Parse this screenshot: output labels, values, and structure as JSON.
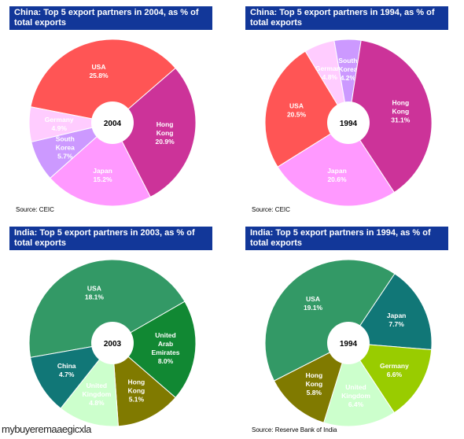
{
  "chart_data": [
    {
      "type": "pie",
      "title": "China: Top 5 export partners in 2004, as % of total exports",
      "center_label": "2004",
      "source": "Source: CEIC",
      "slices": [
        {
          "label": "USA",
          "value": 25.8,
          "value_text": "25.8%",
          "color": "#ff5555",
          "text_color": "#ffffff"
        },
        {
          "label": "Hong Kong",
          "value": 20.9,
          "value_text": "20.9%",
          "color": "#cc3399",
          "text_color": "#ffffff"
        },
        {
          "label": "Japan",
          "value": 15.2,
          "value_text": "15.2%",
          "color": "#ff99ff",
          "text_color": "#ffffff"
        },
        {
          "label": "South Korea",
          "value": 5.7,
          "value_text": "5.7%",
          "color": "#cc99ff",
          "text_color": "#ffffff"
        },
        {
          "label": "Germany",
          "value": 4.9,
          "value_text": "4.9%",
          "color": "#ffccff",
          "text_color": "#ffffff"
        }
      ]
    },
    {
      "type": "pie",
      "title": "China: Top 5 export partners in 1994, as % of total exports",
      "center_label": "1994",
      "source": "Source: CEIC",
      "slices": [
        {
          "label": "USA",
          "value": 20.5,
          "value_text": "20.5%",
          "color": "#ff5555",
          "text_color": "#ffffff"
        },
        {
          "label": "Germany",
          "value": 4.8,
          "value_text": "4.8%",
          "color": "#ffccff",
          "text_color": "#ffffff"
        },
        {
          "label": "South Korea",
          "value": 4.2,
          "value_text": "4.2%",
          "color": "#cc99ff",
          "text_color": "#ffffff"
        },
        {
          "label": "Hong Kong",
          "value": 31.1,
          "value_text": "31.1%",
          "color": "#cc3399",
          "text_color": "#ffffff"
        },
        {
          "label": "Japan",
          "value": 20.6,
          "value_text": "20.6%",
          "color": "#ff99ff",
          "text_color": "#ffffff"
        }
      ]
    },
    {
      "type": "pie",
      "title": "India: Top 5 export partners in 2003, as % of total exports",
      "center_label": "2003",
      "source": "",
      "slices": [
        {
          "label": "USA",
          "value": 18.1,
          "value_text": "18.1%",
          "color": "#339966",
          "text_color": "#ffffff"
        },
        {
          "label": "United Arab Emirates",
          "value": 8.0,
          "value_text": "8.0%",
          "color": "#118833",
          "text_color": "#ffffff"
        },
        {
          "label": "Hong Kong",
          "value": 5.1,
          "value_text": "5.1%",
          "color": "#807a00",
          "text_color": "#ffffff"
        },
        {
          "label": "United Kingdom",
          "value": 4.8,
          "value_text": "4.8%",
          "color": "#ccffcc",
          "text_color": "#ffffff"
        },
        {
          "label": "China",
          "value": 4.7,
          "value_text": "4.7%",
          "color": "#117777",
          "text_color": "#ffffff"
        }
      ]
    },
    {
      "type": "pie",
      "title": "India: Top 5 export partners in 1994, as % of total exports",
      "center_label": "1994",
      "source": "Source: Reserve Bank of India",
      "slices": [
        {
          "label": "USA",
          "value": 19.1,
          "value_text": "19.1%",
          "color": "#339966",
          "text_color": "#ffffff"
        },
        {
          "label": "Japan",
          "value": 7.7,
          "value_text": "7.7%",
          "color": "#117777",
          "text_color": "#ffffff"
        },
        {
          "label": "Germany",
          "value": 6.6,
          "value_text": "6.6%",
          "color": "#99cc00",
          "text_color": "#ffffff"
        },
        {
          "label": "United Kingdom",
          "value": 6.4,
          "value_text": "6.4%",
          "color": "#ccffcc",
          "text_color": "#ffffff"
        },
        {
          "label": "Hong Kong",
          "value": 5.8,
          "value_text": "5.8%",
          "color": "#807a00",
          "text_color": "#ffffff"
        }
      ]
    }
  ],
  "watermark": "mybuyeremaaegicxla"
}
